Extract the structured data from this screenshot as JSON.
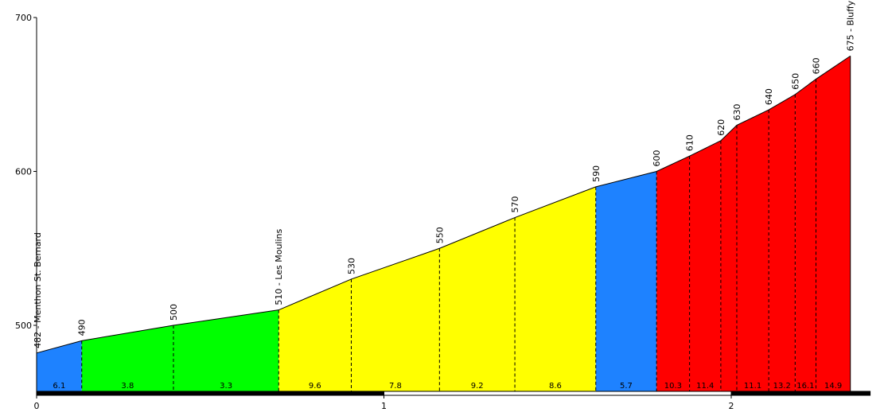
{
  "chart_data": {
    "type": "area",
    "title": "",
    "xlabel": "",
    "ylabel": "",
    "xlim": [
      0,
      2.4
    ],
    "ylim": [
      456,
      700
    ],
    "x_ticks": [
      0,
      1,
      2
    ],
    "y_ticks": [
      500,
      600,
      700
    ],
    "grid": false,
    "profile": [
      {
        "x": 0.0,
        "y": 482,
        "label": "482 - Menthon St. Bernard"
      },
      {
        "x": 0.13,
        "y": 490,
        "label": "490"
      },
      {
        "x": 0.394,
        "y": 500,
        "label": "500"
      },
      {
        "x": 0.697,
        "y": 510,
        "label": "510 - Les Moulins"
      },
      {
        "x": 0.906,
        "y": 530,
        "label": "530"
      },
      {
        "x": 1.16,
        "y": 550,
        "label": "550"
      },
      {
        "x": 1.377,
        "y": 570,
        "label": "570"
      },
      {
        "x": 1.61,
        "y": 590,
        "label": "590"
      },
      {
        "x": 1.785,
        "y": 600,
        "label": "600"
      },
      {
        "x": 1.88,
        "y": 610,
        "label": "610"
      },
      {
        "x": 1.97,
        "y": 620,
        "label": "620"
      },
      {
        "x": 2.016,
        "y": 630,
        "label": "630"
      },
      {
        "x": 2.108,
        "y": 640,
        "label": "640"
      },
      {
        "x": 2.184,
        "y": 650,
        "label": "650"
      },
      {
        "x": 2.244,
        "y": 660,
        "label": "660"
      },
      {
        "x": 2.343,
        "y": 675,
        "label": "675 - Bluffy"
      }
    ],
    "segments": [
      {
        "from": 0.0,
        "to": 0.13,
        "gradient": "6.1",
        "color": "#1e82ff"
      },
      {
        "from": 0.13,
        "to": 0.394,
        "gradient": "3.8",
        "color": "#00ff00"
      },
      {
        "from": 0.394,
        "to": 0.697,
        "gradient": "3.3",
        "color": "#00ff00"
      },
      {
        "from": 0.697,
        "to": 0.906,
        "gradient": "9.6",
        "color": "#ffff00"
      },
      {
        "from": 0.906,
        "to": 1.16,
        "gradient": "7.8",
        "color": "#ffff00"
      },
      {
        "from": 1.16,
        "to": 1.377,
        "gradient": "9.2",
        "color": "#ffff00"
      },
      {
        "from": 1.377,
        "to": 1.61,
        "gradient": "8.6",
        "color": "#ffff00"
      },
      {
        "from": 1.61,
        "to": 1.785,
        "gradient": "5.7",
        "color": "#1e82ff"
      },
      {
        "from": 1.785,
        "to": 1.88,
        "gradient": "10.3",
        "color": "#ff0000"
      },
      {
        "from": 1.88,
        "to": 1.97,
        "gradient": "11.4",
        "color": "#ff0000"
      },
      {
        "from": 1.97,
        "to": 2.016,
        "gradient": "",
        "color": "#ff0000"
      },
      {
        "from": 2.016,
        "to": 2.108,
        "gradient": "11.1",
        "color": "#ff0000"
      },
      {
        "from": 2.108,
        "to": 2.184,
        "gradient": "13.2",
        "color": "#ff0000"
      },
      {
        "from": 2.184,
        "to": 2.244,
        "gradient": "16.1",
        "color": "#ff0000"
      },
      {
        "from": 2.244,
        "to": 2.343,
        "gradient": "14.9",
        "color": "#ff0000"
      }
    ],
    "distance_bar": [
      {
        "from": 0,
        "to": 1,
        "color": "#000000"
      },
      {
        "from": 1,
        "to": 2,
        "color": "#ffffff"
      },
      {
        "from": 2,
        "to": 2.4,
        "color": "#000000"
      }
    ]
  }
}
